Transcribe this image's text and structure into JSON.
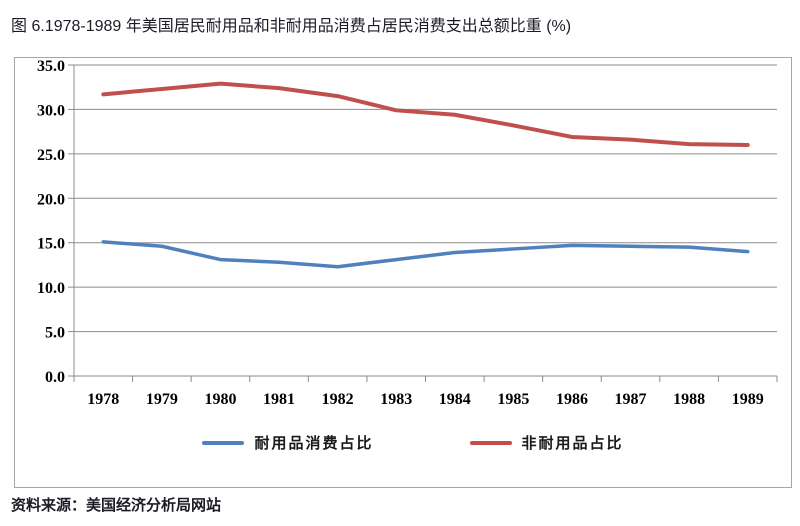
{
  "page": {
    "title": "图 6.1978-1989 年美国居民耐用品和非耐用品消费占居民消费支出总额比重 (%)",
    "source": "资料来源：美国经济分析局网站"
  },
  "colors": {
    "durables_line": "#4F81BD",
    "nondurables_line": "#C0504D",
    "gridline": "#8C8C8C",
    "axis": "#8C8C8C",
    "chart_border": "#A6A6A6",
    "tick_label": "#000000",
    "title_text": "#1C1C26"
  },
  "legend": {
    "items": [
      {
        "label": "耐用品消费占比",
        "color": "#4F81BD"
      },
      {
        "label": "非耐用品占比",
        "color": "#C0504D"
      }
    ]
  },
  "chart_data": {
    "type": "line",
    "title": "图 6.1978-1989 年美国居民耐用品和非耐用品消费占居民消费支出总额比重 (%)",
    "categories": [
      "1978",
      "1979",
      "1980",
      "1981",
      "1982",
      "1983",
      "1984",
      "1985",
      "1986",
      "1987",
      "1988",
      "1989"
    ],
    "series": [
      {
        "name": "耐用品消费占比",
        "color": "#4F81BD",
        "stroke_width": 3.5,
        "values": [
          15.1,
          14.6,
          13.1,
          12.8,
          12.3,
          13.1,
          13.9,
          14.3,
          14.7,
          14.6,
          14.5,
          14.0
        ]
      },
      {
        "name": "非耐用品占比",
        "color": "#C0504D",
        "stroke_width": 4,
        "values": [
          31.7,
          32.3,
          32.9,
          32.4,
          31.5,
          29.9,
          29.4,
          28.2,
          26.9,
          26.6,
          26.1,
          26.0
        ]
      }
    ],
    "ylim": [
      0,
      35
    ],
    "ytick_step": 5,
    "ytick_labels": [
      "0.0",
      "5.0",
      "10.0",
      "15.0",
      "20.0",
      "25.0",
      "30.0",
      "35.0"
    ],
    "grid": true,
    "legend_position": "bottom",
    "xlabel": "",
    "ylabel": ""
  }
}
